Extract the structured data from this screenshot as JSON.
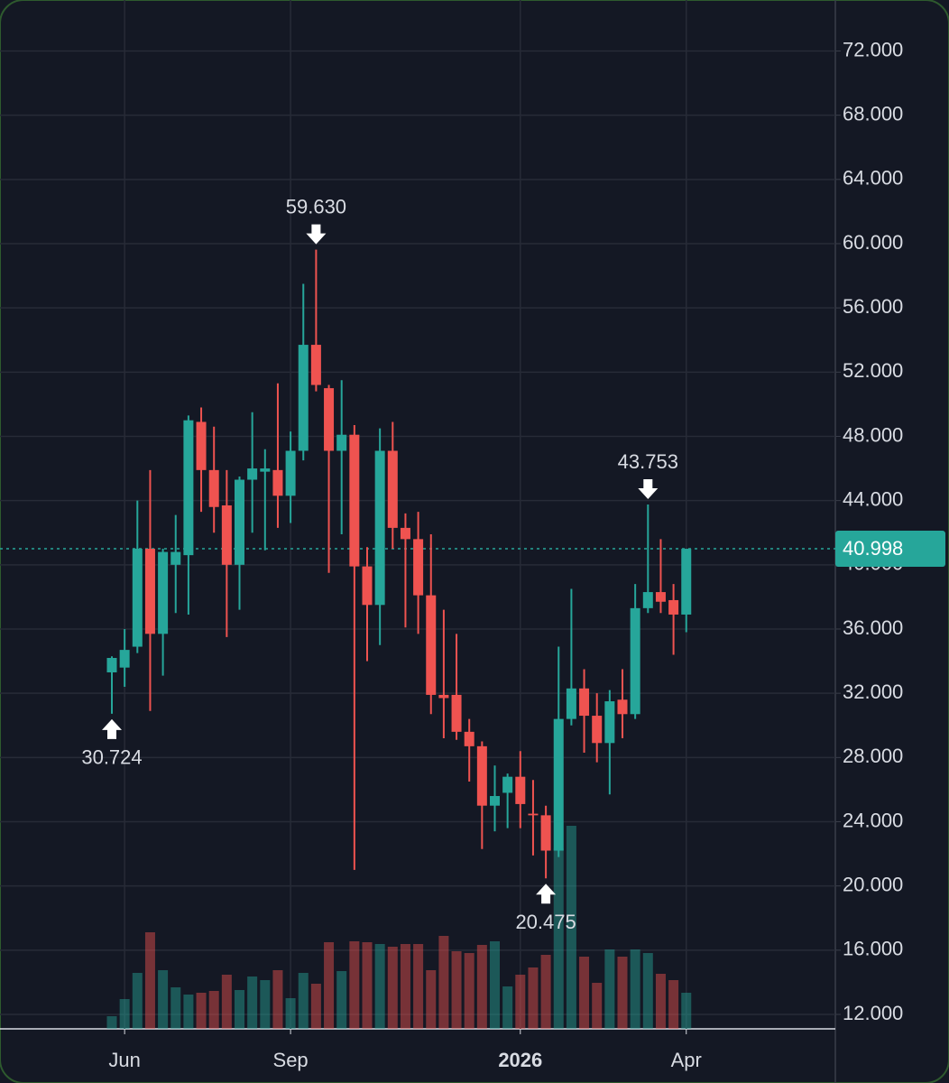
{
  "chart_data": {
    "type": "candlestick",
    "categories": [
      null,
      "Jun",
      null,
      null,
      null,
      null,
      null,
      null,
      null,
      null,
      null,
      null,
      null,
      null,
      "Sep",
      null,
      null,
      null,
      null,
      null,
      null,
      null,
      null,
      null,
      null,
      null,
      null,
      null,
      null,
      null,
      null,
      null,
      "2026",
      null,
      null,
      null,
      null,
      null,
      null,
      null,
      null,
      null,
      null,
      null,
      null,
      "Apr"
    ],
    "open": [
      33.3,
      33.6,
      34.9,
      41.0,
      35.7,
      40.0,
      40.6,
      48.9,
      45.9,
      43.7,
      40.0,
      45.3,
      45.8,
      45.9,
      44.3,
      47.1,
      53.7,
      51.0,
      47.1,
      48.1,
      39.9,
      37.5,
      47.1,
      42.3,
      41.6,
      38.1,
      31.9,
      31.9,
      29.6,
      28.7,
      25.0,
      25.8,
      26.8,
      24.5,
      24.4,
      22.2,
      30.4,
      32.3,
      30.6,
      28.9,
      31.6,
      30.7,
      37.3,
      38.3,
      37.8,
      36.9
    ],
    "high": [
      34.3,
      36.0,
      44.0,
      45.9,
      41.0,
      43.1,
      49.3,
      49.8,
      48.6,
      45.9,
      45.5,
      49.5,
      47.2,
      51.3,
      48.3,
      57.5,
      59.63,
      51.2,
      51.5,
      48.7,
      41.1,
      48.5,
      48.9,
      43.2,
      43.3,
      41.9,
      37.2,
      35.7,
      30.4,
      29.0,
      27.5,
      27.0,
      28.4,
      26.6,
      25.0,
      34.9,
      38.5,
      33.5,
      32.0,
      32.2,
      33.5,
      38.8,
      43.753,
      41.6,
      38.8,
      41.0
    ],
    "low": [
      30.724,
      32.4,
      34.5,
      30.9,
      33.1,
      37.0,
      36.9,
      43.3,
      42.0,
      35.5,
      37.2,
      42.0,
      40.9,
      42.3,
      42.6,
      46.5,
      50.8,
      39.5,
      41.9,
      21.0,
      34.0,
      35.0,
      41.0,
      36.1,
      35.7,
      30.7,
      29.2,
      29.1,
      26.5,
      22.3,
      23.4,
      23.6,
      23.6,
      21.9,
      20.475,
      21.8,
      30.0,
      28.3,
      27.7,
      25.7,
      29.2,
      30.4,
      37.0,
      37.0,
      34.4,
      35.8
    ],
    "close": [
      34.2,
      34.7,
      41.0,
      35.7,
      40.8,
      40.8,
      49.0,
      45.9,
      43.6,
      40.0,
      45.3,
      46.0,
      46.0,
      44.3,
      47.1,
      53.7,
      51.2,
      47.1,
      48.1,
      39.9,
      37.5,
      47.1,
      42.3,
      41.6,
      38.1,
      31.9,
      31.7,
      29.6,
      28.7,
      25.0,
      25.6,
      26.8,
      25.1,
      24.4,
      22.2,
      30.4,
      32.3,
      30.6,
      28.9,
      31.5,
      30.7,
      37.3,
      38.3,
      37.7,
      36.9,
      40.998
    ],
    "volume": [
      14,
      33,
      62,
      107,
      65,
      46,
      38,
      40,
      42,
      60,
      43,
      58,
      54,
      65,
      34,
      62,
      50,
      96,
      64,
      97,
      96,
      94,
      91,
      94,
      94,
      65,
      103,
      86,
      84,
      93,
      97,
      47,
      60,
      68,
      82,
      200,
      225,
      80,
      51,
      88,
      80,
      88,
      84,
      61,
      54,
      40
    ],
    "up_color": "#26a69a",
    "down_color": "#ef5350",
    "ylim": [
      11.1,
      74.5
    ],
    "yticks": [
      {
        "value": 12,
        "label": "12.000"
      },
      {
        "value": 16,
        "label": "16.000"
      },
      {
        "value": 20,
        "label": "20.000"
      },
      {
        "value": 24,
        "label": "24.000"
      },
      {
        "value": 28,
        "label": "28.000"
      },
      {
        "value": 32,
        "label": "32.000"
      },
      {
        "value": 36,
        "label": "36.000"
      },
      {
        "value": 40,
        "label": "40.000"
      },
      {
        "value": 44,
        "label": "44.000"
      },
      {
        "value": 48,
        "label": "48.000"
      },
      {
        "value": 52,
        "label": "52.000"
      },
      {
        "value": 56,
        "label": "56.000"
      },
      {
        "value": 60,
        "label": "60.000"
      },
      {
        "value": 64,
        "label": "64.000"
      },
      {
        "value": 68,
        "label": "68.000"
      },
      {
        "value": 72,
        "label": "72.000"
      }
    ],
    "grid": true,
    "last_price": 40.998,
    "annotations": [
      {
        "text": "59.630",
        "value": 59.63,
        "at": 16,
        "side": "above"
      },
      {
        "text": "30.724",
        "value": 30.724,
        "at": 0,
        "side": "below"
      },
      {
        "text": "20.475",
        "value": 20.475,
        "at": 34,
        "side": "below"
      },
      {
        "text": "43.753",
        "value": 43.753,
        "at": 42,
        "side": "above"
      }
    ]
  }
}
